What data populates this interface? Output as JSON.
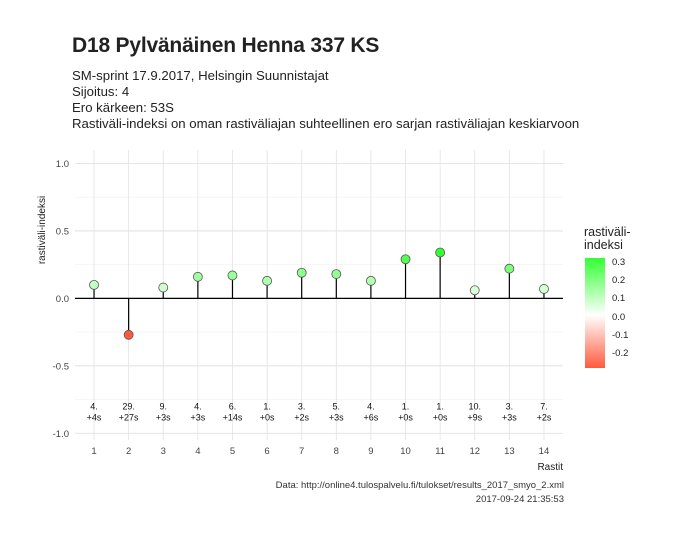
{
  "header": {
    "title": "D18 Pylvänäinen Henna 337 KS",
    "subtitle_lines": [
      "SM-sprint 17.9.2017, Helsingin Suunnistajat",
      "Sijoitus: 4",
      "Ero kärkeen: 53S",
      "Rastiväli-indeksi on oman rastiväliajan suhteellinen ero sarjan rastiväliajan keskiarvoon"
    ]
  },
  "caption": {
    "source": "Data: http://online4.tulospalvelu.fi/tulokset/results_2017_smyo_2.xml",
    "timestamp": "2017-09-24 21:35:53"
  },
  "legend": {
    "title_line1": "rastiväli-",
    "title_line2": "indeksi",
    "labels": [
      "0.3",
      "0.2",
      "0.1",
      "0.0",
      "-0.1",
      "-0.2"
    ],
    "colors": {
      "high": "#33ff33",
      "mid": "#ffffff",
      "low": "#ff5a3c"
    }
  },
  "chart_data": {
    "type": "scatter",
    "style": "lollipop",
    "xlabel": "Rastit",
    "ylabel": "rastiväli-indeksi",
    "ylim": [
      -1.05,
      1.1
    ],
    "y_ticks": [
      "1.0",
      "0.5",
      "0.0",
      "-0.5",
      "-1.0"
    ],
    "y_tick_values": [
      1.0,
      0.5,
      0.0,
      -0.5,
      -1.0
    ],
    "grid": true,
    "x": [
      1,
      2,
      3,
      4,
      5,
      6,
      7,
      8,
      9,
      10,
      11,
      12,
      13,
      14
    ],
    "x_tick_labels": [
      "1",
      "2",
      "3",
      "4",
      "5",
      "6",
      "7",
      "8",
      "9",
      "10",
      "11",
      "12",
      "13",
      "14"
    ],
    "values": [
      0.1,
      -0.27,
      0.08,
      0.16,
      0.17,
      0.13,
      0.19,
      0.18,
      0.13,
      0.29,
      0.34,
      0.06,
      0.22,
      0.07
    ],
    "rank_labels": [
      "4.",
      "29.",
      "9.",
      "4.",
      "6.",
      "1.",
      "3.",
      "5.",
      "4.",
      "1.",
      "1.",
      "10.",
      "3.",
      "7."
    ],
    "diff_labels": [
      "+4s",
      "+27s",
      "+3s",
      "+3s",
      "+14s",
      "+0s",
      "+2s",
      "+3s",
      "+6s",
      "+0s",
      "+0s",
      "+9s",
      "+3s",
      "+2s"
    ],
    "color_scale": {
      "min": -0.27,
      "max": 0.34,
      "low": "#ff5a3c",
      "mid": "#ffffff",
      "high": "#33ff33"
    }
  }
}
